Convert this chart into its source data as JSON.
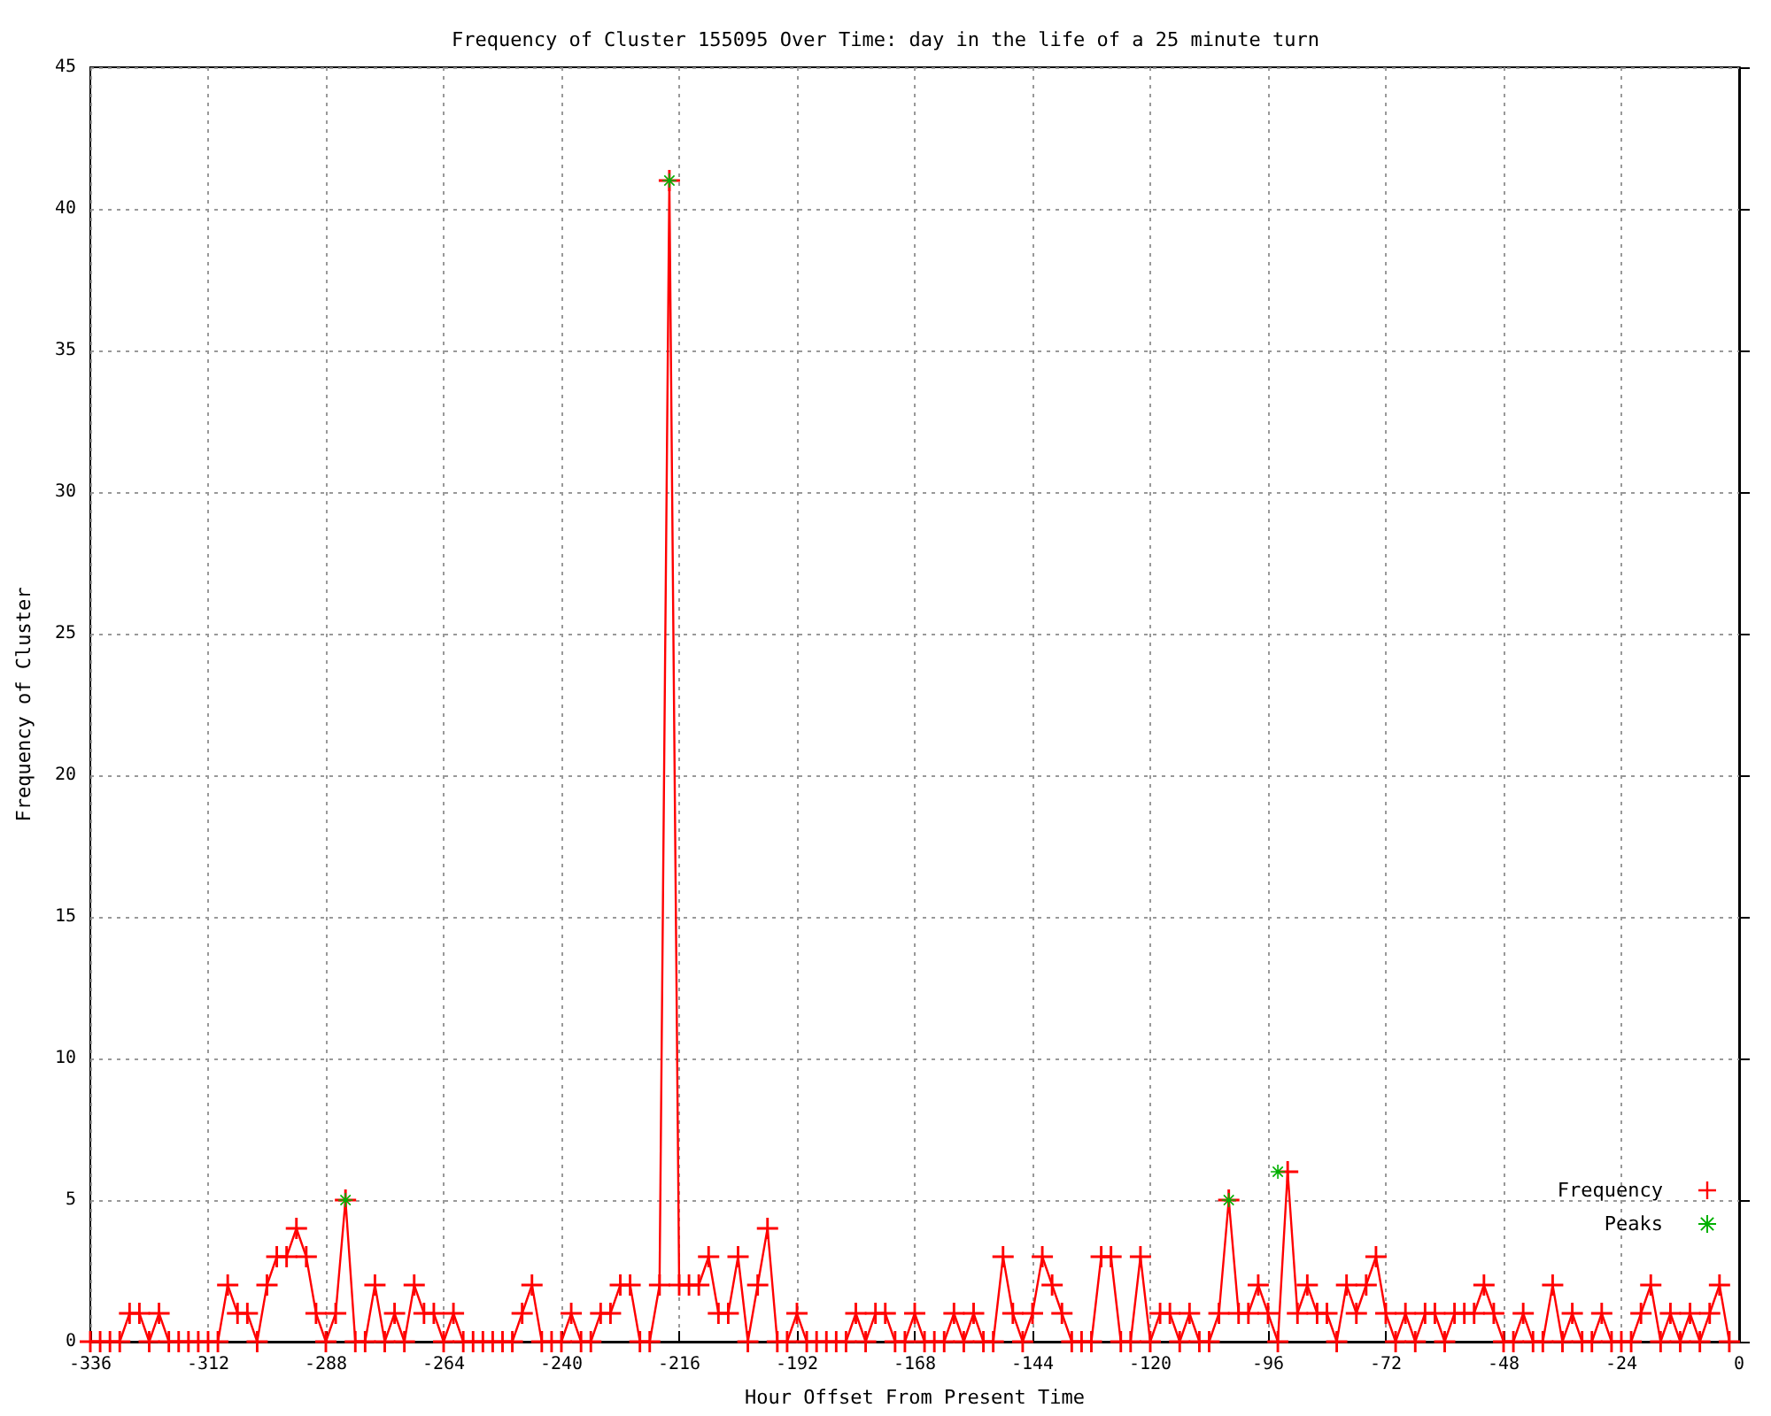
{
  "chart_data": {
    "type": "line",
    "title": "Frequency of Cluster 155095 Over Time: day in the life of a 25 minute turn",
    "xlabel": "Hour Offset From Present Time",
    "ylabel": "Frequency of Cluster",
    "x": [
      -336,
      -334,
      -332,
      -330,
      -328,
      -326,
      -324,
      -322,
      -320,
      -318,
      -316,
      -314,
      -312,
      -310,
      -308,
      -306,
      -304,
      -302,
      -300,
      -298,
      -296,
      -294,
      -292,
      -290,
      -288,
      -286,
      -284,
      -282,
      -280,
      -278,
      -276,
      -274,
      -272,
      -270,
      -268,
      -266,
      -264,
      -262,
      -260,
      -258,
      -256,
      -254,
      -252,
      -250,
      -248,
      -246,
      -244,
      -242,
      -240,
      -238,
      -236,
      -234,
      -232,
      -230,
      -228,
      -226,
      -224,
      -222,
      -220,
      -218,
      -216,
      -214,
      -212,
      -210,
      -208,
      -206,
      -204,
      -202,
      -200,
      -198,
      -196,
      -194,
      -192,
      -190,
      -188,
      -186,
      -184,
      -182,
      -180,
      -178,
      -176,
      -174,
      -172,
      -170,
      -168,
      -166,
      -164,
      -162,
      -160,
      -158,
      -156,
      -154,
      -152,
      -150,
      -148,
      -146,
      -144,
      -142,
      -140,
      -138,
      -136,
      -134,
      -132,
      -130,
      -128,
      -126,
      -124,
      -122,
      -120,
      -118,
      -116,
      -114,
      -112,
      -110,
      -108,
      -106,
      -104,
      -102,
      -100,
      -98,
      -96,
      -94,
      -92,
      -90,
      -88,
      -86,
      -84,
      -82,
      -80,
      -78,
      -76,
      -74,
      -72,
      -70,
      -68,
      -66,
      -64,
      -62,
      -60,
      -58,
      -56,
      -54,
      -52,
      -50,
      -48,
      -46,
      -44,
      -42,
      -40,
      -38,
      -36,
      -34,
      -32,
      -30,
      -28,
      -26,
      -24,
      -22,
      -20,
      -18,
      -16,
      -14,
      -12,
      -10,
      -8,
      -6,
      -4,
      -2
    ],
    "series": [
      {
        "name": "Frequency",
        "type": "line",
        "color": "#ff0000",
        "marker": "cross",
        "values": [
          0,
          0,
          0,
          0,
          1,
          1,
          0,
          1,
          0,
          0,
          0,
          0,
          0,
          0,
          2,
          1,
          1,
          0,
          2,
          3,
          3,
          4,
          3,
          1,
          0,
          1,
          5,
          0,
          0,
          2,
          0,
          1,
          0,
          2,
          1,
          1,
          0,
          1,
          0,
          0,
          0,
          0,
          0,
          0,
          1,
          2,
          0,
          0,
          0,
          1,
          0,
          0,
          1,
          1,
          2,
          2,
          0,
          0,
          2,
          41,
          2,
          2,
          2,
          3,
          1,
          1,
          3,
          0,
          2,
          4,
          0,
          0,
          1,
          0,
          0,
          0,
          0,
          0,
          1,
          0,
          1,
          1,
          0,
          0,
          1,
          0,
          0,
          0,
          1,
          0,
          1,
          0,
          0,
          3,
          1,
          0,
          1,
          3,
          2,
          1,
          0,
          0,
          0,
          3,
          3,
          0,
          0,
          3,
          0,
          1,
          1,
          0,
          1,
          0,
          0,
          1,
          5,
          1,
          1,
          2,
          1,
          0,
          6,
          1,
          2,
          1,
          1,
          0,
          2,
          1,
          2,
          3,
          1,
          0,
          1,
          0,
          1,
          1,
          0,
          1,
          1,
          1,
          2,
          1,
          0,
          0,
          1,
          0,
          0,
          2,
          0,
          1,
          0,
          0,
          1,
          0,
          0,
          0,
          1,
          2,
          0,
          1,
          0,
          1,
          0,
          1,
          2,
          0
        ]
      },
      {
        "name": "Peaks",
        "type": "scatter",
        "color": "#00b000",
        "marker": "star",
        "x": [
          -284,
          -218,
          -104,
          -94
        ],
        "values": [
          5,
          41,
          5,
          6
        ]
      }
    ],
    "xlim": [
      -336,
      0
    ],
    "xticks": [
      -336,
      -312,
      -288,
      -264,
      -240,
      -216,
      -192,
      -168,
      -144,
      -120,
      -96,
      -72,
      -48,
      -24,
      0
    ],
    "ylim": [
      0,
      45
    ],
    "yticks": [
      0,
      5,
      10,
      15,
      20,
      25,
      30,
      35,
      40,
      45
    ],
    "grid": true,
    "legend": "bottom right"
  }
}
